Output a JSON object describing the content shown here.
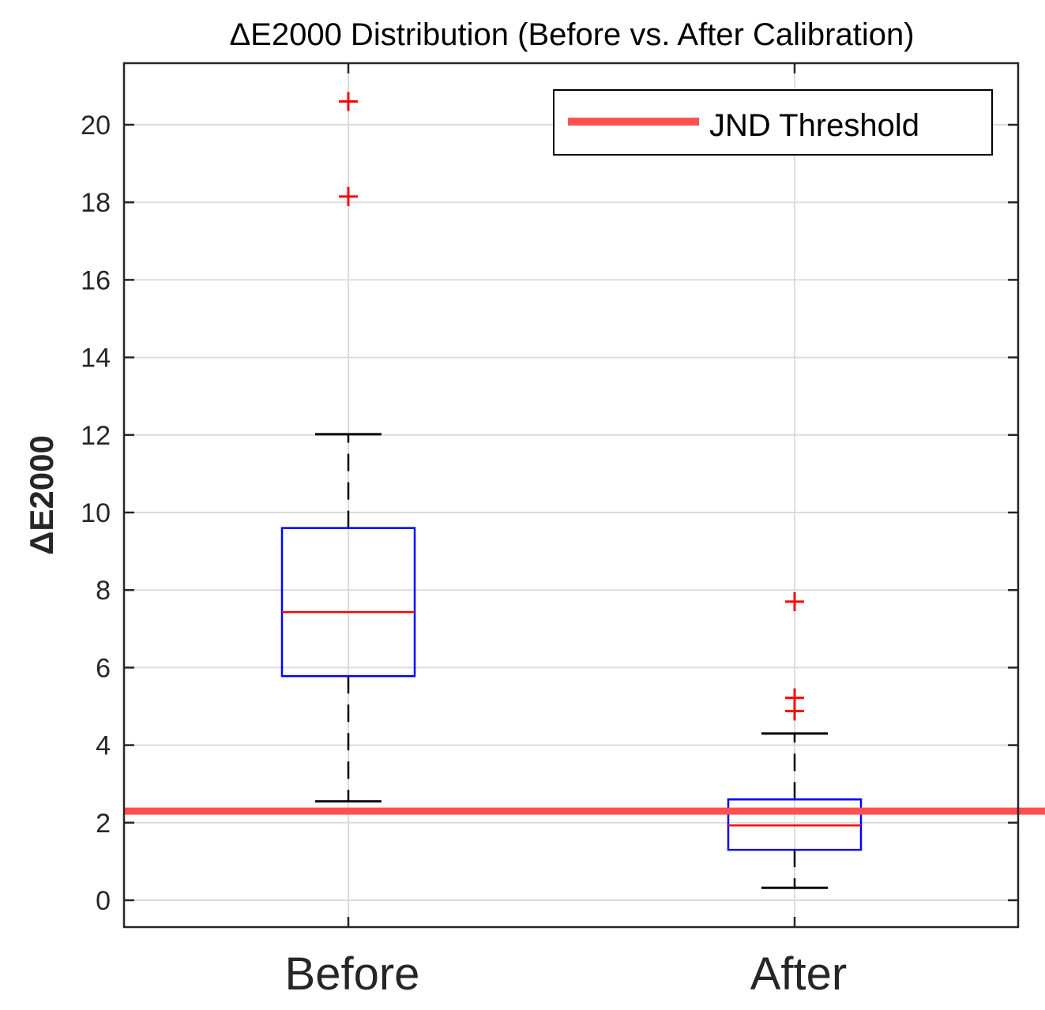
{
  "chart_data": {
    "type": "box",
    "title": "ΔE2000 Distribution (Before vs. After Calibration)",
    "xlabel": "",
    "ylabel": "ΔE2000",
    "ylim": [
      -0.7,
      21.6
    ],
    "yticks": [
      0,
      2,
      4,
      6,
      8,
      10,
      12,
      14,
      16,
      18,
      20
    ],
    "grid": true,
    "categories": [
      "Before",
      "After"
    ],
    "boxes": [
      {
        "name": "Before",
        "whisker_low": 2.55,
        "q1": 5.78,
        "median": 7.43,
        "q3": 9.6,
        "whisker_high": 12.02,
        "outliers": [
          18.15,
          20.6
        ]
      },
      {
        "name": "After",
        "whisker_low": 0.32,
        "q1": 1.3,
        "median": 1.93,
        "q3": 2.6,
        "whisker_high": 4.3,
        "outliers": [
          4.88,
          5.22,
          7.7
        ]
      }
    ],
    "reference_line": {
      "label": "JND Threshold",
      "value": 2.3,
      "color": "#ff5050"
    },
    "legend": {
      "position": "top-right",
      "entries": [
        "JND Threshold"
      ]
    },
    "colors": {
      "box": "#0000ff",
      "median": "#ff0000",
      "whisker": "#000000",
      "outlier": "#ff0000",
      "grid": "#dcdcdc",
      "axis": "#262626"
    }
  }
}
